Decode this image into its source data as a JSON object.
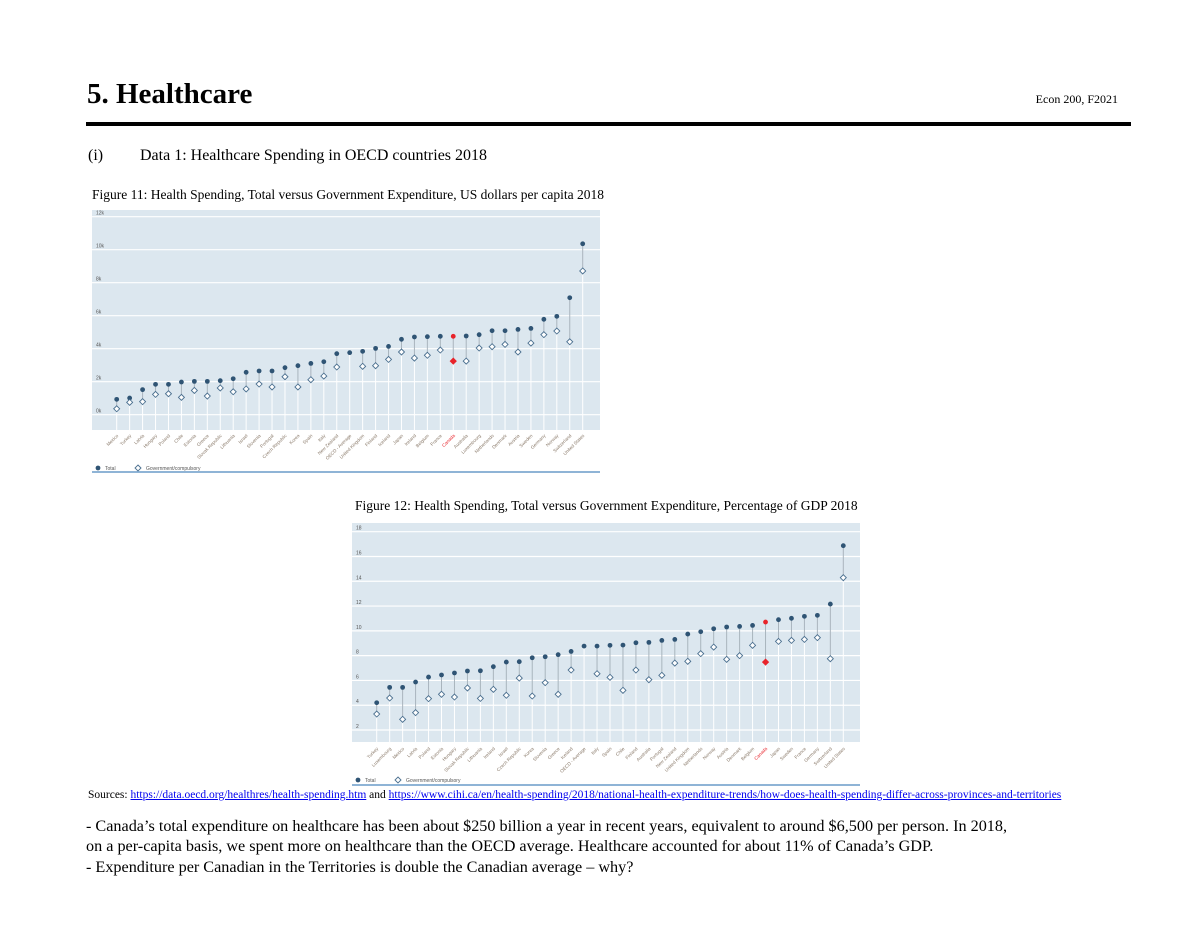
{
  "header": {
    "title": "5. Healthcare",
    "course": "Econ 200, F2021"
  },
  "section": {
    "number": "(i)",
    "text": "Data 1: Healthcare Spending in OECD countries 2018"
  },
  "figures": {
    "fig11_caption": "Figure 11: Health Spending, Total versus Government Expenditure, US dollars per capita 2018",
    "fig12_caption": "Figure 12: Health Spending, Total versus Government Expenditure, Percentage of GDP 2018"
  },
  "colors": {
    "plot_bg": "#dce7ef",
    "total": "#2f5474",
    "gov": "#4a6f8f",
    "highlight": "#e8232a",
    "link": "#0000ee"
  },
  "chart_data": [
    {
      "type": "scatter",
      "title": "",
      "ylim": [
        0,
        12
      ],
      "yticks": [
        "0k",
        "2k",
        "4k",
        "6k",
        "8k",
        "10k",
        "12k"
      ],
      "grid": true,
      "legend": "bottom-left",
      "highlight": "Canada",
      "categories": [
        "Mexico",
        "Turkey",
        "Latvia",
        "Hungary",
        "Poland",
        "Chile",
        "Estonia",
        "Greece",
        "Slovak Republic",
        "Lithuania",
        "Israel",
        "Slovenia",
        "Portugal",
        "Czech Republic",
        "Korea",
        "Spain",
        "Italy",
        "New Zealand",
        "OECD - Average",
        "United Kingdom",
        "Finland",
        "Iceland",
        "Japan",
        "Ireland",
        "Belgium",
        "France",
        "Canada",
        "Australia",
        "Luxembourg",
        "Netherlands",
        "Denmark",
        "Austria",
        "Sweden",
        "Germany",
        "Norway",
        "Switzerland",
        "United States"
      ],
      "series": [
        {
          "name": "Total",
          "values": [
            0.93,
            1.01,
            1.52,
            1.84,
            1.84,
            1.98,
            2.02,
            2.02,
            2.06,
            2.18,
            2.57,
            2.65,
            2.65,
            2.85,
            2.97,
            3.11,
            3.21,
            3.7,
            3.76,
            3.84,
            4.02,
            4.14,
            4.57,
            4.71,
            4.73,
            4.75,
            4.75,
            4.77,
            4.85,
            5.09,
            5.09,
            5.17,
            5.23,
            5.78,
            5.96,
            7.09,
            10.36
          ]
        },
        {
          "name": "Government/compulsory",
          "values": [
            0.36,
            0.75,
            0.79,
            1.23,
            1.27,
            1.05,
            1.47,
            1.13,
            1.62,
            1.39,
            1.56,
            1.86,
            1.68,
            2.3,
            1.68,
            2.12,
            2.34,
            2.89,
            null,
            2.93,
            2.97,
            3.35,
            3.8,
            3.43,
            3.6,
            3.92,
            3.25,
            3.25,
            4.04,
            4.12,
            4.26,
            3.8,
            4.34,
            4.85,
            5.07,
            4.42,
            8.71
          ]
        }
      ]
    },
    {
      "type": "scatter",
      "title": "",
      "ylim": [
        2,
        18
      ],
      "yticks": [
        "2",
        "4",
        "6",
        "8",
        "10",
        "12",
        "14",
        "16",
        "18"
      ],
      "grid": true,
      "legend": "bottom-left",
      "highlight": "Canada",
      "categories": [
        "Turkey",
        "Luxembourg",
        "Mexico",
        "Latvia",
        "Poland",
        "Estonia",
        "Hungary",
        "Slovak Republic",
        "Lithuania",
        "Ireland",
        "Israel",
        "Czech Republic",
        "Korea",
        "Slovenia",
        "Greece",
        "Iceland",
        "OECD - Average",
        "Italy",
        "Spain",
        "Chile",
        "Finland",
        "Australia",
        "Portugal",
        "New Zealand",
        "United Kingdom",
        "Netherlands",
        "Norway",
        "Austria",
        "Denmark",
        "Belgium",
        "Canada",
        "Japan",
        "Sweden",
        "France",
        "Germany",
        "Switzerland",
        "United States"
      ],
      "series": [
        {
          "name": "Total",
          "values": [
            4.2,
            5.44,
            5.44,
            5.87,
            6.27,
            6.44,
            6.6,
            6.76,
            6.78,
            7.11,
            7.48,
            7.51,
            7.83,
            7.91,
            8.08,
            8.34,
            8.77,
            8.77,
            8.83,
            8.85,
            9.04,
            9.07,
            9.23,
            9.31,
            9.74,
            9.93,
            10.17,
            10.31,
            10.36,
            10.44,
            10.71,
            10.9,
            11.01,
            11.17,
            11.25,
            12.16,
            16.87
          ]
        },
        {
          "name": "Government/compulsory",
          "values": [
            3.29,
            4.58,
            2.86,
            3.4,
            4.53,
            4.88,
            4.66,
            5.39,
            4.55,
            5.28,
            4.8,
            6.19,
            4.74,
            5.82,
            4.88,
            6.84,
            null,
            6.54,
            6.25,
            5.2,
            6.84,
            6.06,
            6.41,
            7.4,
            7.54,
            8.16,
            8.69,
            7.7,
            8.0,
            8.83,
            7.48,
            9.15,
            9.23,
            9.31,
            9.45,
            7.75,
            14.29
          ]
        }
      ]
    }
  ],
  "sources": {
    "label": "Sources:",
    "link1": "https://data.oecd.org/healthres/health-spending.htm",
    "and": "and",
    "link2": "https://www.cihi.ca/en/health-spending/2018/national-health-expenditure-trends/how-does-health-spending-differ-across-provinces-and-territories"
  },
  "notes": [
    "- Canada’s total expenditure on healthcare has been about $250 billion a year in recent years, equivalent to around $6,500 per person. In 2018,",
    "on a per-capita basis, we spent more on healthcare than the OECD average. Healthcare accounted for about 11% of Canada’s GDP.",
    "- Expenditure per Canadian in the Territories is double the Canadian average – why?"
  ]
}
